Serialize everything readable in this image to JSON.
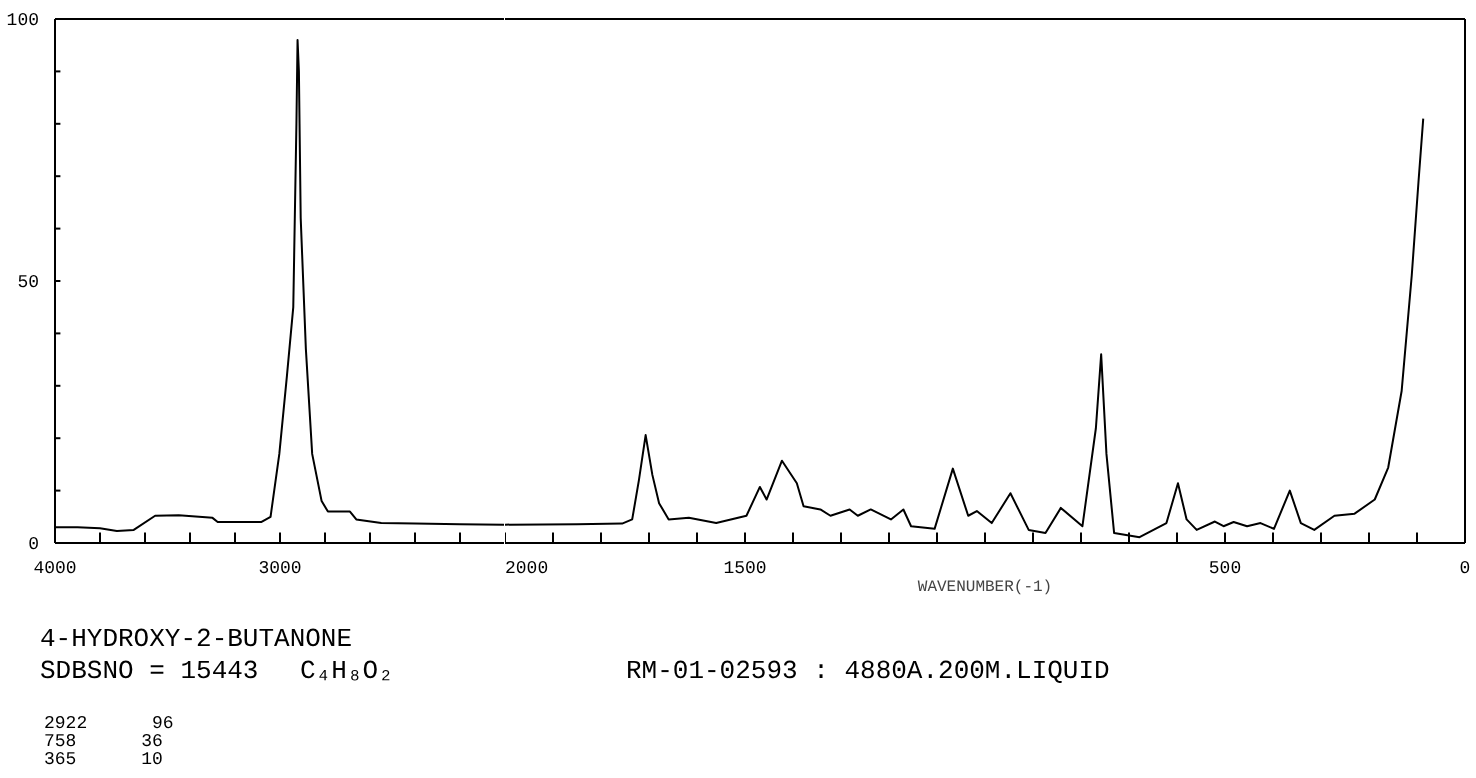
{
  "chart_data": [
    {
      "type": "line",
      "x": [
        4000,
        3900,
        3800,
        3725,
        3650,
        3555,
        3450,
        3300,
        3277,
        3180,
        3084,
        3042,
        3003,
        2969,
        2941,
        2927,
        2922,
        2916,
        2908,
        2885,
        2857,
        2815,
        2787,
        2740,
        2689,
        2661,
        2550,
        2400,
        2200,
        2000
      ],
      "series": [
        {
          "color": "#000000",
          "values": [
            3,
            3,
            2.8,
            2.3,
            2.5,
            5.2,
            5.3,
            4.8,
            4,
            4,
            4,
            5,
            17,
            32,
            45,
            80,
            96,
            90,
            62,
            37,
            17,
            8,
            6,
            6,
            6,
            4.5,
            3.8,
            3.7,
            3.6,
            3.5
          ]
        }
      ],
      "xlim": [
        4000,
        2000
      ],
      "xticks": [
        4000,
        {
          "value": 3800,
          "label": null
        },
        {
          "value": 3600,
          "label": null
        },
        {
          "value": 3400,
          "label": null
        },
        {
          "value": 3200,
          "label": null
        },
        3000,
        {
          "value": 2800,
          "label": null
        },
        {
          "value": 2600,
          "label": null
        },
        {
          "value": 2400,
          "label": null
        },
        {
          "value": 2200,
          "label": null
        }
      ],
      "ylim": [
        0,
        100
      ],
      "yticks": [
        0,
        {
          "value": 10,
          "label": null
        },
        {
          "value": 20,
          "label": null
        },
        {
          "value": 30,
          "label": null
        },
        {
          "value": 40,
          "label": null
        },
        50,
        {
          "value": 60,
          "label": null
        },
        {
          "value": 70,
          "label": null
        },
        {
          "value": 80,
          "label": null
        },
        {
          "value": 90,
          "label": null
        },
        100
      ],
      "grid": false,
      "marker": "none",
      "line_style": "solid",
      "annotations": [
        "4-HYDROXY-2-BUTANONE",
        "SDBSNO = 15443",
        "C₄H₈O₂",
        "RM-01-02593 : 4880A.200M.LIQUID",
        "2922      96",
        "758      36",
        "365      10"
      ]
    },
    {
      "type": "line",
      "xlabel": "WAVENUMBER(-1)",
      "x": [
        2000,
        1850,
        1756,
        1735,
        1721,
        1707,
        1693,
        1679,
        1659,
        1617,
        1560,
        1497,
        1469,
        1455,
        1423,
        1392,
        1378,
        1343,
        1322,
        1282,
        1265,
        1238,
        1196,
        1170,
        1154,
        1105,
        1067,
        1035,
        1017,
        986,
        947,
        909,
        874,
        842,
        797,
        769,
        758,
        747,
        731,
        678,
        622,
        598,
        580,
        559,
        521,
        503,
        482,
        454,
        426,
        398,
        365,
        342,
        314,
        272,
        230,
        188,
        160,
        132,
        111,
        97,
        87
      ],
      "series": [
        {
          "color": "#000000",
          "values": [
            3.5,
            3.6,
            3.7,
            4.5,
            12,
            20.6,
            13,
            7.6,
            4.5,
            4.8,
            3.8,
            5.2,
            10.7,
            8.3,
            15.7,
            11.4,
            7,
            6.4,
            5.2,
            6.4,
            5.2,
            6.4,
            4.5,
            6.4,
            3.2,
            2.7,
            14.2,
            5.2,
            6.1,
            3.8,
            9.5,
            2.5,
            1.9,
            6.7,
            3.2,
            21.9,
            36,
            17,
            1.9,
            1.1,
            3.8,
            11.4,
            4.5,
            2.5,
            4.1,
            3.2,
            4,
            3.2,
            3.8,
            2.7,
            10,
            3.8,
            2.5,
            5.2,
            5.6,
            8.3,
            14.4,
            29,
            51,
            68.8,
            81
          ]
        }
      ],
      "xlim": [
        2000,
        0
      ],
      "xticks": [
        2000,
        {
          "value": 1900,
          "label": null
        },
        {
          "value": 1800,
          "label": null
        },
        {
          "value": 1700,
          "label": null
        },
        {
          "value": 1600,
          "label": null
        },
        1500,
        {
          "value": 1400,
          "label": null
        },
        {
          "value": 1300,
          "label": null
        },
        {
          "value": 1200,
          "label": null
        },
        {
          "value": 1100,
          "label": null
        },
        {
          "value": 1000,
          "label": null
        },
        {
          "value": 900,
          "label": null
        },
        {
          "value": 800,
          "label": null
        },
        {
          "value": 700,
          "label": null
        },
        {
          "value": 600,
          "label": null
        },
        500,
        {
          "value": 400,
          "label": null
        },
        {
          "value": 300,
          "label": null
        },
        {
          "value": 200,
          "label": null
        },
        {
          "value": 100,
          "label": null
        },
        0
      ],
      "ylim": [
        0,
        100
      ],
      "tick_labels": "x",
      "grid": false,
      "marker": "none",
      "line_style": "solid"
    }
  ]
}
